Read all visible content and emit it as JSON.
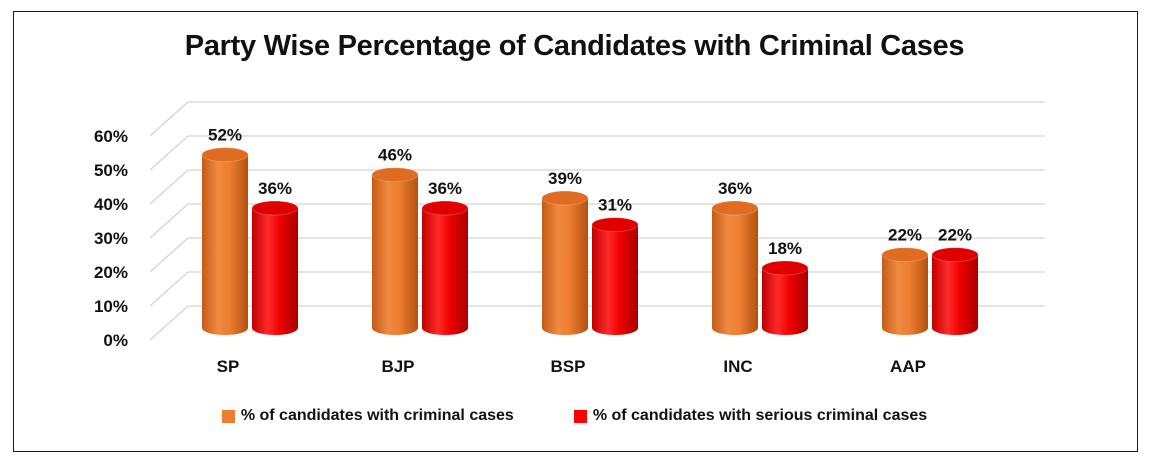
{
  "chart_data": {
    "type": "bar",
    "title": "Party Wise Percentage of Candidates with Criminal Cases",
    "categories": [
      "SP",
      "BJP",
      "BSP",
      "INC",
      "AAP"
    ],
    "series": [
      {
        "name": "% of candidates with criminal cases",
        "values": [
          52,
          46,
          39,
          36,
          22
        ],
        "color": "#ED7D31"
      },
      {
        "name": "% of candidates with serious criminal cases",
        "values": [
          36,
          36,
          31,
          18,
          22
        ],
        "color": "#FF0000"
      }
    ],
    "data_labels": [
      [
        "52%",
        "46%",
        "39%",
        "36%",
        "22%"
      ],
      [
        "36%",
        "36%",
        "31%",
        "18%",
        "22%"
      ]
    ],
    "y_ticks": [
      "0%",
      "10%",
      "20%",
      "30%",
      "40%",
      "50%",
      "60%"
    ],
    "ylim": [
      0,
      60
    ],
    "grid": true,
    "legend": "bottom",
    "xlabel": "",
    "ylabel": ""
  }
}
